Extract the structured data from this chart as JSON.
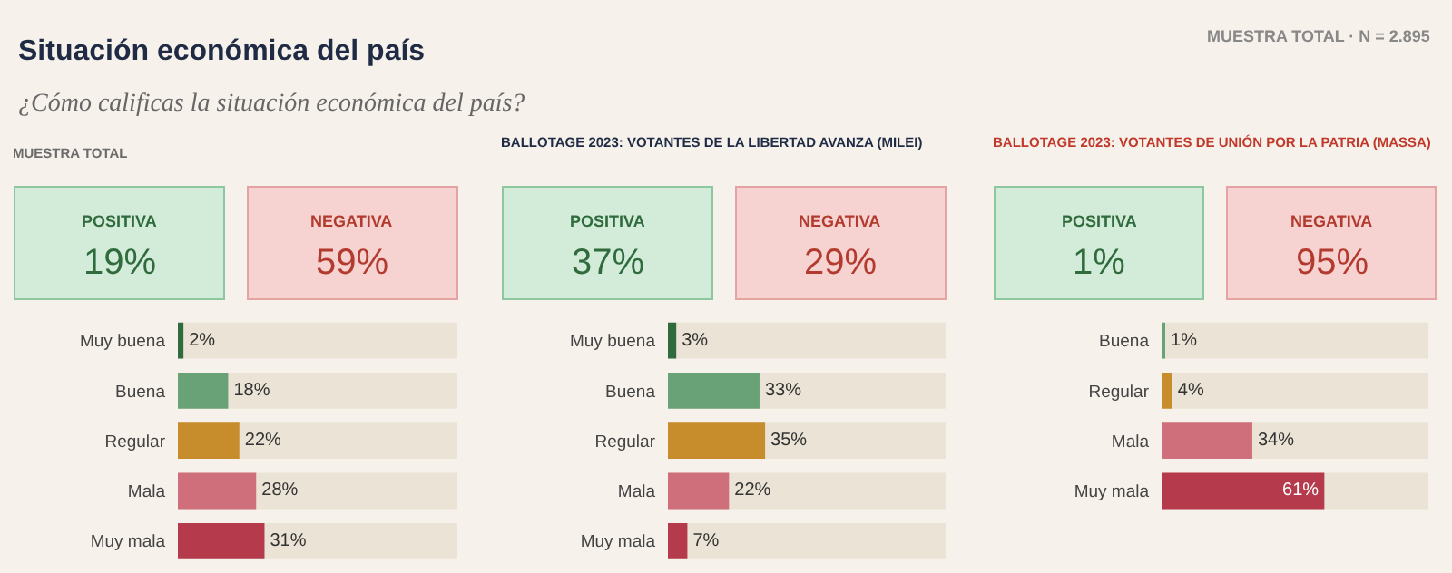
{
  "chart_data": [
    {
      "type": "other",
      "title": "Situación económica del país",
      "subtitle": "¿Cómo calificas la situación económica del país?",
      "annotations": [
        "MUESTRA TOTAL · N = 2.895",
        "MUESTRA TOTAL"
      ],
      "categories": [
        "POSITIVA",
        "NEGATIVA"
      ],
      "value_labels": [
        "19%",
        "59%"
      ],
      "colors": [
        "#d3ebd9",
        "#f6d3d1"
      ]
    },
    {
      "type": "bar",
      "orientation": "horizontal",
      "categories": [
        "Muy buena",
        "Buena",
        "Regular",
        "Mala",
        "Muy mala"
      ],
      "values": [
        2,
        18,
        22,
        28,
        31
      ],
      "value_labels": [
        "2%",
        "18%",
        "22%",
        "28%",
        "31%"
      ],
      "colors": [
        "#2f6b3c",
        "#6aa277",
        "#c78d2c",
        "#cf6f7c",
        "#b43a4c"
      ],
      "xlim": [
        0,
        100
      ],
      "tick_labels": "y"
    },
    {
      "type": "other",
      "title": "BALLOTAGE 2023: VOTANTES DE LA LIBERTAD AVANZA (MILEI)",
      "categories": [
        "POSITIVA",
        "NEGATIVA"
      ],
      "value_labels": [
        "37%",
        "29%"
      ],
      "colors": [
        "#d3ebd9",
        "#f6d3d1"
      ]
    },
    {
      "type": "bar",
      "orientation": "horizontal",
      "categories": [
        "Muy buena",
        "Buena",
        "Regular",
        "Mala",
        "Muy mala"
      ],
      "values": [
        3,
        33,
        35,
        22,
        7
      ],
      "value_labels": [
        "3%",
        "33%",
        "35%",
        "22%",
        "7%"
      ],
      "colors": [
        "#2f6b3c",
        "#6aa277",
        "#c78d2c",
        "#cf6f7c",
        "#b43a4c"
      ],
      "xlim": [
        0,
        100
      ],
      "tick_labels": "y"
    },
    {
      "type": "other",
      "title": "BALLOTAGE 2023: VOTANTES DE UNIÓN POR LA PATRIA (MASSA)",
      "categories": [
        "POSITIVA",
        "NEGATIVA"
      ],
      "value_labels": [
        "1%",
        "95%"
      ],
      "colors": [
        "#d3ebd9",
        "#f6d3d1"
      ]
    },
    {
      "type": "bar",
      "orientation": "horizontal",
      "categories": [
        "Buena",
        "Regular",
        "Mala",
        "Muy mala"
      ],
      "values": [
        1,
        4,
        34,
        61
      ],
      "value_labels": [
        "1%",
        "4%",
        "34%",
        "61%"
      ],
      "colors": [
        "#6aa277",
        "#c78d2c",
        "#cf6f7c",
        "#b43a4c"
      ],
      "xlim": [
        0,
        100
      ],
      "tick_labels": "y"
    }
  ]
}
